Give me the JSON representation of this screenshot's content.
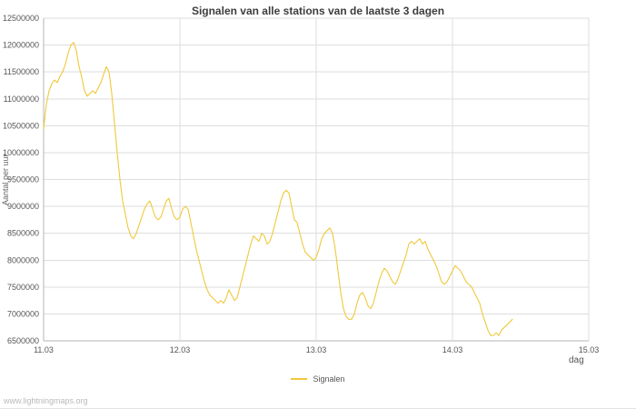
{
  "page": {
    "watermark": "www.lightningmaps.org"
  },
  "chart_data": {
    "type": "line",
    "title": "Signalen van alle stations van de laatste 3 dagen",
    "xlabel": "dag",
    "ylabel": "Aantal per uur",
    "xlim": [
      0,
      4
    ],
    "ylim": [
      6500000,
      12500000
    ],
    "y_tick_step": 500000,
    "grid": true,
    "legend_position": "bottom-center",
    "x_ticks": {
      "labels": [
        "11.03",
        "12.03",
        "13.03",
        "14.03",
        "15.03"
      ],
      "positions": [
        0,
        1,
        2,
        3,
        4
      ]
    },
    "series": [
      {
        "name": "Signalen",
        "color": "#f0c83c",
        "x_start": 0,
        "x_step": 0.02,
        "values": [
          10450000,
          10900000,
          11150000,
          11280000,
          11350000,
          11300000,
          11420000,
          11500000,
          11650000,
          11850000,
          12000000,
          12050000,
          11900000,
          11600000,
          11400000,
          11150000,
          11050000,
          11100000,
          11150000,
          11100000,
          11200000,
          11300000,
          11450000,
          11600000,
          11500000,
          11100000,
          10550000,
          10000000,
          9500000,
          9100000,
          8850000,
          8600000,
          8450000,
          8400000,
          8500000,
          8650000,
          8800000,
          8950000,
          9050000,
          9100000,
          8950000,
          8800000,
          8750000,
          8800000,
          8950000,
          9100000,
          9150000,
          8950000,
          8800000,
          8750000,
          8800000,
          8950000,
          9000000,
          8950000,
          8700000,
          8450000,
          8200000,
          8000000,
          7800000,
          7600000,
          7450000,
          7350000,
          7300000,
          7250000,
          7200000,
          7250000,
          7200000,
          7300000,
          7450000,
          7350000,
          7250000,
          7300000,
          7500000,
          7700000,
          7900000,
          8100000,
          8300000,
          8450000,
          8400000,
          8350000,
          8500000,
          8450000,
          8300000,
          8350000,
          8500000,
          8700000,
          8900000,
          9100000,
          9250000,
          9300000,
          9250000,
          9000000,
          8750000,
          8700000,
          8500000,
          8300000,
          8150000,
          8100000,
          8050000,
          8000000,
          8050000,
          8200000,
          8400000,
          8500000,
          8550000,
          8600000,
          8500000,
          8200000,
          7800000,
          7400000,
          7100000,
          6950000,
          6900000,
          6900000,
          7000000,
          7200000,
          7350000,
          7400000,
          7300000,
          7150000,
          7100000,
          7200000,
          7400000,
          7600000,
          7750000,
          7850000,
          7800000,
          7700000,
          7600000,
          7550000,
          7650000,
          7800000,
          7950000,
          8100000,
          8300000,
          8350000,
          8300000,
          8350000,
          8400000,
          8300000,
          8350000,
          8200000,
          8100000,
          8000000,
          7900000,
          7750000,
          7600000,
          7550000,
          7600000,
          7700000,
          7800000,
          7900000,
          7850000,
          7800000,
          7700000,
          7600000,
          7550000,
          7500000,
          7400000,
          7300000,
          7200000,
          7000000,
          6850000,
          6700000,
          6600000,
          6600000,
          6650000,
          6600000,
          6700000,
          6750000,
          6800000,
          6850000,
          6900000
        ]
      }
    ]
  }
}
